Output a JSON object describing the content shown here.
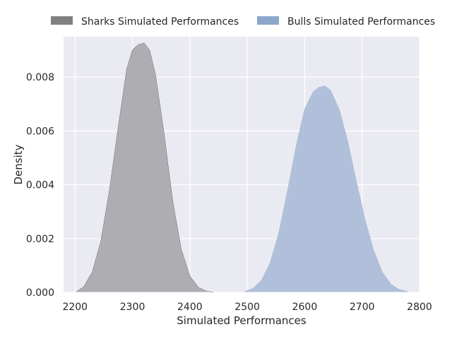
{
  "chart_data": {
    "type": "area",
    "title": "",
    "xlabel": "Simulated Performances",
    "ylabel": "Density",
    "xlim": [
      2180,
      2800
    ],
    "ylim": [
      0,
      0.0095
    ],
    "xticks": [
      2200,
      2300,
      2400,
      2500,
      2600,
      2700,
      2800
    ],
    "yticks": [
      0.0,
      0.002,
      0.004,
      0.006,
      0.008
    ],
    "ytick_labels": [
      "0.000",
      "0.002",
      "0.004",
      "0.006",
      "0.008"
    ],
    "grid": true,
    "legend_position": "top, outside plot, two columns",
    "series": [
      {
        "name": "Sharks Simulated Performances",
        "color": "#808080",
        "fill_color": "#aeadb2",
        "x": [
          2202,
          2215,
          2230,
          2245,
          2260,
          2275,
          2290,
          2300,
          2310,
          2320,
          2330,
          2340,
          2355,
          2370,
          2385,
          2400,
          2415,
          2430,
          2440
        ],
        "y": [
          2e-05,
          0.0002,
          0.00075,
          0.0019,
          0.0038,
          0.0061,
          0.0083,
          0.009,
          0.0092,
          0.00927,
          0.009,
          0.0081,
          0.0059,
          0.0034,
          0.0016,
          0.0006,
          0.00018,
          4e-05,
          1e-05
        ]
      },
      {
        "name": "Bulls Simulated Performances",
        "color": "#8da7ca",
        "fill_color": "#b0c0da",
        "x": [
          2495,
          2510,
          2525,
          2540,
          2555,
          2570,
          2585,
          2600,
          2615,
          2625,
          2635,
          2645,
          2660,
          2675,
          2690,
          2705,
          2720,
          2735,
          2750,
          2765,
          2780
        ],
        "y": [
          3e-05,
          0.00015,
          0.00045,
          0.0011,
          0.0022,
          0.00375,
          0.0054,
          0.0068,
          0.00745,
          0.00762,
          0.00767,
          0.0075,
          0.0068,
          0.0056,
          0.0041,
          0.0027,
          0.00155,
          0.00075,
          0.0003,
          0.0001,
          2e-05
        ]
      }
    ]
  }
}
